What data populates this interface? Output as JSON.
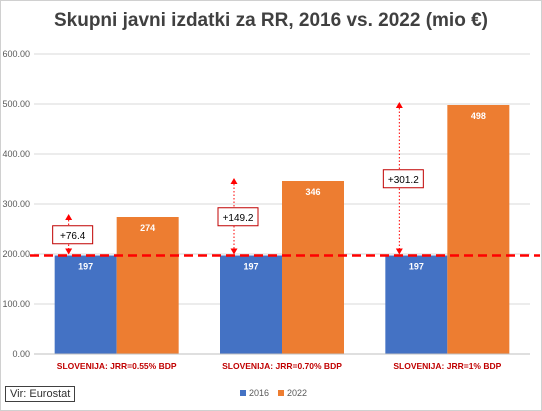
{
  "chart_data": {
    "type": "bar",
    "title": "Skupni javni izdatki za RR, 2016 vs. 2022 (mio €)",
    "categories": [
      "SLOVENIJA: JRR=0.55% BDP",
      "SLOVENIJA: JRR=0.70% BDP",
      "SLOVENIJA: JRR=1% BDP"
    ],
    "series": [
      {
        "name": "2016",
        "values": [
          197,
          197,
          197
        ],
        "color": "#4472C4"
      },
      {
        "name": "2022",
        "values": [
          274,
          346,
          498
        ],
        "color": "#ED7D31"
      }
    ],
    "ylim": [
      0,
      600
    ],
    "yticks": [
      "0.00",
      "100.00",
      "200.00",
      "300.00",
      "400.00",
      "500.00",
      "600.00"
    ],
    "data_labels_2016": [
      "197",
      "197",
      "197"
    ],
    "data_labels_2022": [
      "274",
      "346",
      "498"
    ],
    "annotations": [
      "+76.4",
      "+149.2",
      "+301.2"
    ],
    "reference_line": {
      "value": 197,
      "color": "#FF0000",
      "style": "dashed"
    },
    "grid": true,
    "legend_position": "bottom"
  },
  "source_note": "Vir: Eurostat"
}
